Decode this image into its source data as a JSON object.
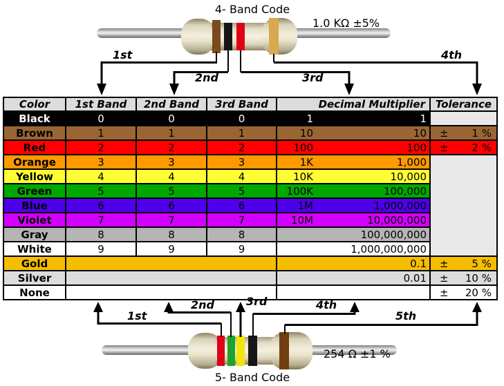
{
  "top_resistor": {
    "title": "4- Band Code",
    "value_label": "1.0 KΩ  ±5%",
    "band_order": [
      "brown",
      "black",
      "red",
      "gold"
    ],
    "band_colors": {
      "brown": "#7b4a1e",
      "black": "#161616",
      "red": "#e00016",
      "gold": "#d9a850"
    },
    "arrow_labels": [
      "1st",
      "2nd",
      "3rd",
      "4th"
    ]
  },
  "bottom_resistor": {
    "title": "5- Band Code",
    "value_label": "254 Ω  ±1 %",
    "band_order": [
      "red",
      "green",
      "yellow",
      "black",
      "brown"
    ],
    "band_colors": {
      "red": "#e00016",
      "green": "#1fa32a",
      "yellow": "#f2e50c",
      "black": "#161616",
      "brown": "#6f3f10"
    },
    "arrow_labels": [
      "1st",
      "2nd",
      "3rd",
      "4th",
      "5th"
    ]
  },
  "table": {
    "headers": [
      "Color",
      "1st Band",
      "2nd Band",
      "3rd Band",
      "Decimal Multiplier",
      "Tolerance"
    ],
    "header_bg": "#dcdcdc",
    "empty_tolerance_bg": "#e9e9e9",
    "tolerance_sign": "±",
    "rows": [
      {
        "name": "Black",
        "bg": "#000000",
        "fg": "#ffffff",
        "bands": [
          "0",
          "0",
          "0"
        ],
        "mult_prefix": "1",
        "mult_value": "1",
        "tolerance": null
      },
      {
        "name": "Brown",
        "bg": "#996633",
        "fg": "#000000",
        "bands": [
          "1",
          "1",
          "1"
        ],
        "mult_prefix": "10",
        "mult_value": "10",
        "tolerance": "1 %"
      },
      {
        "name": "Red",
        "bg": "#ff0000",
        "fg": "#000000",
        "bands": [
          "2",
          "2",
          "2"
        ],
        "mult_prefix": "100",
        "mult_value": "100",
        "tolerance": "2 %"
      },
      {
        "name": "Orange",
        "bg": "#ff9900",
        "fg": "#000000",
        "bands": [
          "3",
          "3",
          "3"
        ],
        "mult_prefix": "1K",
        "mult_value": "1,000",
        "tolerance": null
      },
      {
        "name": "Yellow",
        "bg": "#ffff33",
        "fg": "#000000",
        "bands": [
          "4",
          "4",
          "4"
        ],
        "mult_prefix": "10K",
        "mult_value": "10,000",
        "tolerance": null
      },
      {
        "name": "Green",
        "bg": "#00a800",
        "fg": "#000000",
        "bands": [
          "5",
          "5",
          "5"
        ],
        "mult_prefix": "100K",
        "mult_value": "100,000",
        "tolerance": null
      },
      {
        "name": "Blue",
        "bg": "#4e00e8",
        "fg": "#000000",
        "bands": [
          "6",
          "6",
          "6"
        ],
        "mult_prefix": "1M",
        "mult_value": "1,000,000",
        "tolerance": null
      },
      {
        "name": "Violet",
        "bg": "#d400ff",
        "fg": "#000000",
        "bands": [
          "7",
          "7",
          "7"
        ],
        "mult_prefix": "10M",
        "mult_value": "10,000,000",
        "tolerance": null
      },
      {
        "name": "Gray",
        "bg": "#b5b5b5",
        "fg": "#000000",
        "bands": [
          "8",
          "8",
          "8"
        ],
        "mult_prefix": "",
        "mult_value": "100,000,000",
        "tolerance": null
      },
      {
        "name": "White",
        "bg": "#ffffff",
        "fg": "#000000",
        "bands": [
          "9",
          "9",
          "9"
        ],
        "mult_prefix": "",
        "mult_value": "1,000,000,000",
        "tolerance": null
      },
      {
        "name": "Gold",
        "bg": "#f5be00",
        "fg": "#000000",
        "bands_merged": true,
        "mult_prefix": "",
        "mult_value": "0.1",
        "tolerance": "5 %"
      },
      {
        "name": "Silver",
        "bg": "#dcdcdc",
        "fg": "#000000",
        "bands_merged": true,
        "mult_prefix": "",
        "mult_value": "0.01",
        "tolerance": "10 %"
      },
      {
        "name": "None",
        "bg": "#ffffff",
        "fg": "#000000",
        "bands_merged": true,
        "mult_prefix": "",
        "mult_value": "",
        "tolerance": "20 %"
      }
    ]
  }
}
